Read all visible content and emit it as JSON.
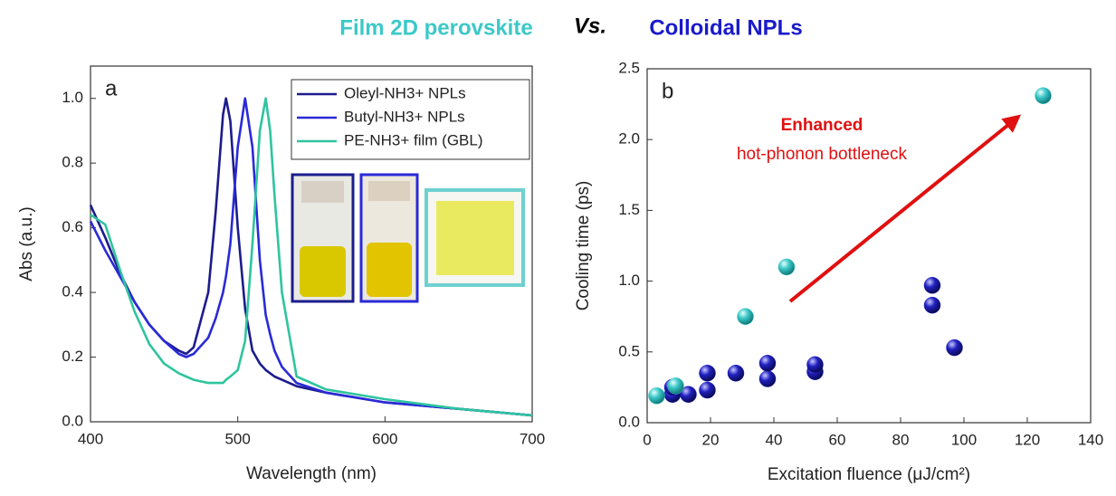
{
  "header": {
    "left": "Film 2D perovskite",
    "vs": "Vs.",
    "right": "Colloidal NPLs"
  },
  "chart_data": [
    {
      "type": "line",
      "annotation": "a",
      "x_label": "Wavelength (nm)",
      "y_label": "Abs (a.u.)",
      "x": [
        400,
        410,
        420,
        430,
        440,
        450,
        460,
        465,
        470,
        480,
        485,
        490,
        492,
        495,
        500,
        505,
        510,
        515,
        519,
        522,
        525,
        530,
        540,
        560,
        600,
        650,
        700
      ],
      "series": [
        {
          "name": "Oleyl-NH3+ NPLs",
          "color": "#1c1c8e",
          "values": [
            0.67,
            0.57,
            0.46,
            0.37,
            0.3,
            0.25,
            0.22,
            0.21,
            0.23,
            0.4,
            0.65,
            0.95,
            1.0,
            0.93,
            0.6,
            0.35,
            0.22,
            0.18,
            0.16,
            0.15,
            0.14,
            0.13,
            0.11,
            0.09,
            0.06,
            0.04,
            0.02
          ]
        },
        {
          "name": "Butyl-NH3+ NPLs",
          "color": "#2a2ad8",
          "values": [
            0.62,
            0.53,
            0.45,
            0.37,
            0.3,
            0.25,
            0.21,
            0.2,
            0.21,
            0.26,
            0.32,
            0.4,
            0.45,
            0.55,
            0.85,
            1.0,
            0.85,
            0.5,
            0.33,
            0.27,
            0.22,
            0.17,
            0.12,
            0.09,
            0.06,
            0.04,
            0.02
          ]
        },
        {
          "name": "PE-NH3+ film (GBL)",
          "color": "#2fc49e",
          "values": [
            0.64,
            0.61,
            0.47,
            0.34,
            0.24,
            0.18,
            0.15,
            0.14,
            0.13,
            0.12,
            0.12,
            0.12,
            0.13,
            0.14,
            0.16,
            0.25,
            0.55,
            0.9,
            1.0,
            0.9,
            0.7,
            0.4,
            0.14,
            0.1,
            0.07,
            0.04,
            0.02
          ]
        }
      ],
      "xlim": [
        400,
        700
      ],
      "xticks": [
        400,
        500,
        600,
        700
      ],
      "ylim": [
        0,
        1.1
      ],
      "yticks": [
        {
          "value": 0,
          "label": "0.0"
        },
        {
          "value": 0.2,
          "label": "0.2"
        },
        {
          "value": 0.4,
          "label": "0.4"
        },
        {
          "value": 0.6,
          "label": "0.6"
        },
        {
          "value": 0.8,
          "label": "0.8"
        },
        {
          "value": 1.0,
          "label": "1.0"
        }
      ],
      "legend": "top-right"
    },
    {
      "type": "scatter",
      "annotation": "b",
      "annotations": [
        "Enhanced",
        "hot-phonon bottleneck"
      ],
      "x_label": "Excitation fluence (μJ/cm²)",
      "y_label": "Cooling time (ps)",
      "series": [
        {
          "color": "#3cc8c8",
          "x": [
            3,
            9,
            31,
            44,
            125
          ],
          "values": [
            0.19,
            0.26,
            0.75,
            1.1,
            2.31
          ]
        },
        {
          "color": "#2020c0",
          "x": [
            8,
            8,
            13,
            19,
            19,
            28,
            38,
            38,
            53,
            53,
            90,
            90,
            97
          ],
          "values": [
            0.2,
            0.25,
            0.2,
            0.23,
            0.35,
            0.35,
            0.31,
            0.42,
            0.36,
            0.41,
            0.83,
            0.97,
            0.53
          ]
        }
      ],
      "xlim": [
        0,
        140
      ],
      "xticks": [
        0,
        20,
        40,
        60,
        80,
        100,
        120,
        140
      ],
      "ylim": [
        0,
        2.5
      ],
      "yticks": [
        {
          "value": 0,
          "label": "0.0"
        },
        {
          "value": 0.5,
          "label": "0.5"
        },
        {
          "value": 1.0,
          "label": "1.0"
        },
        {
          "value": 1.5,
          "label": "1.5"
        },
        {
          "value": 2.0,
          "label": "2.0"
        },
        {
          "value": 2.5,
          "label": "2.5"
        }
      ]
    }
  ]
}
